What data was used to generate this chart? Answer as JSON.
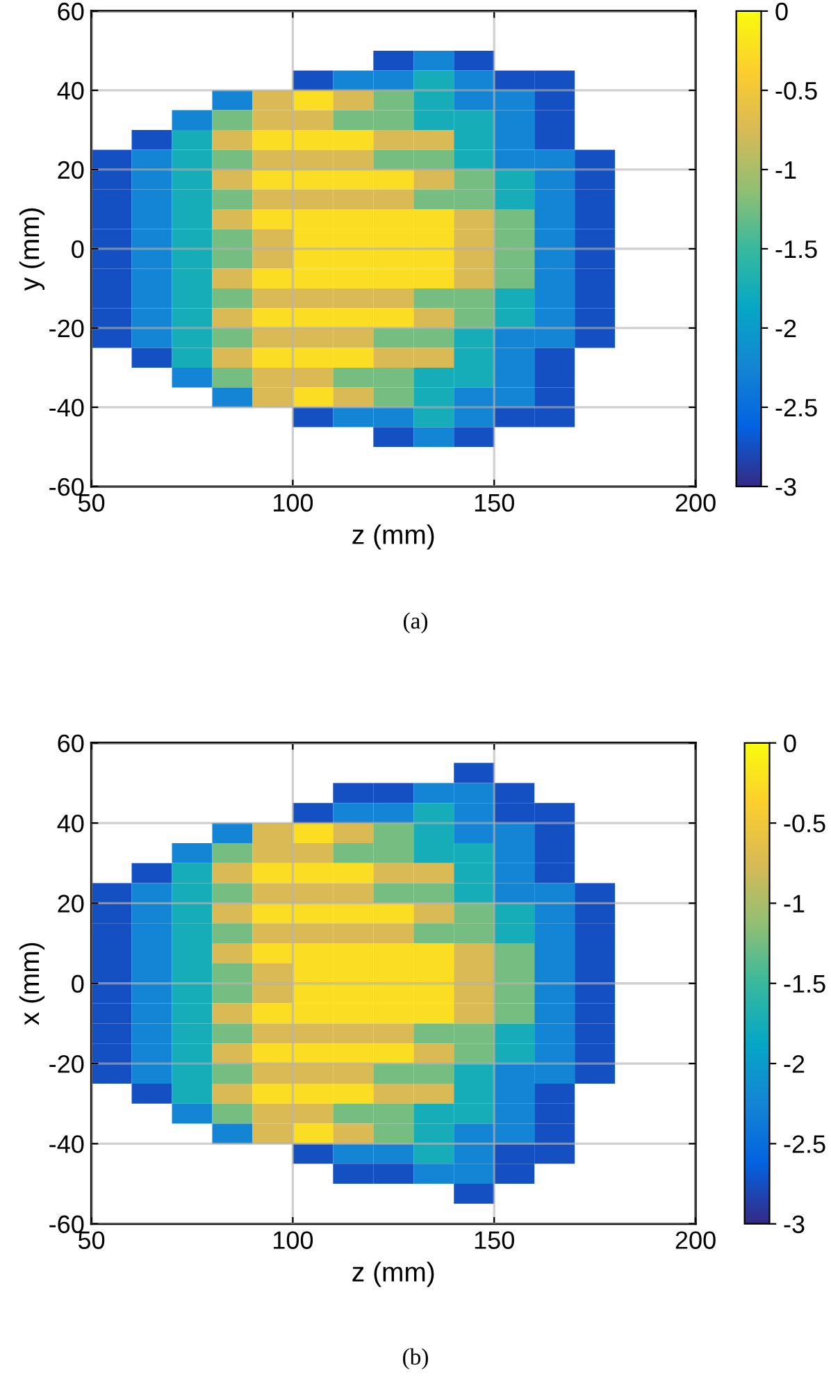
{
  "chart_data": [
    {
      "type": "heatmap",
      "xlabel": "z (mm)",
      "ylabel": "y (mm)",
      "annotations": [
        "(a)"
      ],
      "x": [
        55,
        65,
        75,
        85,
        95,
        105,
        115,
        125,
        135,
        145,
        155,
        165,
        175,
        185,
        195
      ],
      "y": [
        47.5,
        42.5,
        37.5,
        32.5,
        27.5,
        22.5,
        17.5,
        12.5,
        7.5,
        2.5,
        -2.5,
        -7.5,
        -12.5,
        -17.5,
        -22.5,
        -27.5,
        -32.5,
        -37.5,
        -42.5,
        -47.5
      ],
      "cells": [
        [
          null,
          null,
          null,
          null,
          null,
          null,
          null,
          -2.75,
          -2.25,
          -2.75,
          null,
          null,
          null,
          null,
          null
        ],
        [
          null,
          null,
          null,
          null,
          null,
          -2.75,
          -2.25,
          -2.25,
          -1.75,
          -2.25,
          -2.75,
          -2.75,
          null,
          null,
          null
        ],
        [
          null,
          null,
          null,
          -2.25,
          -0.75,
          -0.25,
          -0.75,
          -1.25,
          -1.75,
          -2.25,
          -2.25,
          -2.75,
          null,
          null,
          null
        ],
        [
          null,
          null,
          -2.25,
          -1.25,
          -0.75,
          -0.75,
          -1.25,
          -1.25,
          -1.75,
          -1.75,
          -2.25,
          -2.75,
          null,
          null,
          null
        ],
        [
          null,
          -2.75,
          -1.75,
          -0.75,
          -0.25,
          -0.25,
          -0.25,
          -0.75,
          -0.75,
          -1.75,
          -2.25,
          -2.75,
          null,
          null,
          null
        ],
        [
          -2.75,
          -2.25,
          -1.75,
          -1.25,
          -0.75,
          -0.75,
          -0.75,
          -1.25,
          -1.25,
          -1.75,
          -2.25,
          -2.25,
          -2.75,
          null,
          null
        ],
        [
          -2.75,
          -2.25,
          -1.75,
          -0.75,
          -0.25,
          -0.25,
          -0.25,
          -0.25,
          -0.75,
          -1.25,
          -1.75,
          -2.25,
          -2.75,
          null,
          null
        ],
        [
          -2.75,
          -2.25,
          -1.75,
          -1.25,
          -0.75,
          -0.75,
          -0.75,
          -0.75,
          -1.25,
          -1.25,
          -1.75,
          -2.25,
          -2.75,
          null,
          null
        ],
        [
          -2.75,
          -2.25,
          -1.75,
          -0.75,
          -0.25,
          -0.25,
          -0.25,
          -0.25,
          -0.25,
          -0.75,
          -1.25,
          -2.25,
          -2.75,
          null,
          null
        ],
        [
          -2.75,
          -2.25,
          -1.75,
          -1.25,
          -0.75,
          -0.25,
          -0.25,
          -0.25,
          -0.25,
          -0.75,
          -1.25,
          -2.25,
          -2.75,
          null,
          null
        ],
        [
          -2.75,
          -2.25,
          -1.75,
          -1.25,
          -0.75,
          -0.25,
          -0.25,
          -0.25,
          -0.25,
          -0.75,
          -1.25,
          -2.25,
          -2.75,
          null,
          null
        ],
        [
          -2.75,
          -2.25,
          -1.75,
          -0.75,
          -0.25,
          -0.25,
          -0.25,
          -0.25,
          -0.25,
          -0.75,
          -1.25,
          -2.25,
          -2.75,
          null,
          null
        ],
        [
          -2.75,
          -2.25,
          -1.75,
          -1.25,
          -0.75,
          -0.75,
          -0.75,
          -0.75,
          -1.25,
          -1.25,
          -1.75,
          -2.25,
          -2.75,
          null,
          null
        ],
        [
          -2.75,
          -2.25,
          -1.75,
          -0.75,
          -0.25,
          -0.25,
          -0.25,
          -0.25,
          -0.75,
          -1.25,
          -1.75,
          -2.25,
          -2.75,
          null,
          null
        ],
        [
          -2.75,
          -2.25,
          -1.75,
          -1.25,
          -0.75,
          -0.75,
          -0.75,
          -1.25,
          -1.25,
          -1.75,
          -2.25,
          -2.25,
          -2.75,
          null,
          null
        ],
        [
          null,
          -2.75,
          -1.75,
          -0.75,
          -0.25,
          -0.25,
          -0.25,
          -0.75,
          -0.75,
          -1.75,
          -2.25,
          -2.75,
          null,
          null,
          null
        ],
        [
          null,
          null,
          -2.25,
          -1.25,
          -0.75,
          -0.75,
          -1.25,
          -1.25,
          -1.75,
          -1.75,
          -2.25,
          -2.75,
          null,
          null,
          null
        ],
        [
          null,
          null,
          null,
          -2.25,
          -0.75,
          -0.25,
          -0.75,
          -1.25,
          -1.75,
          -2.25,
          -2.25,
          -2.75,
          null,
          null,
          null
        ],
        [
          null,
          null,
          null,
          null,
          null,
          -2.75,
          -2.25,
          -2.25,
          -1.75,
          -2.25,
          -2.75,
          -2.75,
          null,
          null,
          null
        ],
        [
          null,
          null,
          null,
          null,
          null,
          null,
          null,
          -2.75,
          -2.25,
          -2.75,
          null,
          null,
          null,
          null,
          null
        ]
      ],
      "xlim": [
        50,
        200
      ],
      "xticks": [
        50,
        100,
        150,
        200
      ],
      "ylim": [
        -60,
        60
      ],
      "yticks": [
        -60,
        -40,
        -20,
        0,
        20,
        40,
        60
      ],
      "clim": [
        -3,
        0
      ],
      "cticks": [
        -3,
        -2.5,
        -2,
        -1.5,
        -1,
        -0.5,
        0
      ],
      "grid": true
    },
    {
      "type": "heatmap",
      "xlabel": "z (mm)",
      "ylabel": "x (mm)",
      "annotations": [
        "(b)"
      ],
      "x": [
        55,
        65,
        75,
        85,
        95,
        105,
        115,
        125,
        135,
        145,
        155,
        165,
        175,
        185,
        195
      ],
      "y": [
        52.5,
        47.5,
        42.5,
        37.5,
        32.5,
        27.5,
        22.5,
        17.5,
        12.5,
        7.5,
        2.5,
        -2.5,
        -7.5,
        -12.5,
        -17.5,
        -22.5,
        -27.5,
        -32.5,
        -37.5,
        -42.5,
        -47.5,
        -52.5
      ],
      "cells": [
        [
          null,
          null,
          null,
          null,
          null,
          null,
          null,
          null,
          null,
          -2.75,
          null,
          null,
          null,
          null,
          null
        ],
        [
          null,
          null,
          null,
          null,
          null,
          null,
          -2.75,
          -2.75,
          -2.25,
          -2.25,
          -2.75,
          null,
          null,
          null,
          null
        ],
        [
          null,
          null,
          null,
          null,
          null,
          -2.75,
          -2.25,
          -2.25,
          -1.75,
          -2.25,
          -2.75,
          -2.75,
          null,
          null,
          null
        ],
        [
          null,
          null,
          null,
          -2.25,
          -0.75,
          -0.25,
          -0.75,
          -1.25,
          -1.75,
          -2.25,
          -2.25,
          -2.75,
          null,
          null,
          null
        ],
        [
          null,
          null,
          -2.25,
          -1.25,
          -0.75,
          -0.75,
          -1.25,
          -1.25,
          -1.75,
          -1.75,
          -2.25,
          -2.75,
          null,
          null,
          null
        ],
        [
          null,
          -2.75,
          -1.75,
          -0.75,
          -0.25,
          -0.25,
          -0.25,
          -0.75,
          -0.75,
          -1.75,
          -2.25,
          -2.75,
          null,
          null,
          null
        ],
        [
          -2.75,
          -2.25,
          -1.75,
          -1.25,
          -0.75,
          -0.75,
          -0.75,
          -1.25,
          -1.25,
          -1.75,
          -2.25,
          -2.25,
          -2.75,
          null,
          null
        ],
        [
          -2.75,
          -2.25,
          -1.75,
          -0.75,
          -0.25,
          -0.25,
          -0.25,
          -0.25,
          -0.75,
          -1.25,
          -1.75,
          -2.25,
          -2.75,
          null,
          null
        ],
        [
          -2.75,
          -2.25,
          -1.75,
          -1.25,
          -0.75,
          -0.75,
          -0.75,
          -0.75,
          -1.25,
          -1.25,
          -1.75,
          -2.25,
          -2.75,
          null,
          null
        ],
        [
          -2.75,
          -2.25,
          -1.75,
          -0.75,
          -0.25,
          -0.25,
          -0.25,
          -0.25,
          -0.25,
          -0.75,
          -1.25,
          -2.25,
          -2.75,
          null,
          null
        ],
        [
          -2.75,
          -2.25,
          -1.75,
          -1.25,
          -0.75,
          -0.25,
          -0.25,
          -0.25,
          -0.25,
          -0.75,
          -1.25,
          -2.25,
          -2.75,
          null,
          null
        ],
        [
          -2.75,
          -2.25,
          -1.75,
          -1.25,
          -0.75,
          -0.25,
          -0.25,
          -0.25,
          -0.25,
          -0.75,
          -1.25,
          -2.25,
          -2.75,
          null,
          null
        ],
        [
          -2.75,
          -2.25,
          -1.75,
          -0.75,
          -0.25,
          -0.25,
          -0.25,
          -0.25,
          -0.25,
          -0.75,
          -1.25,
          -2.25,
          -2.75,
          null,
          null
        ],
        [
          -2.75,
          -2.25,
          -1.75,
          -1.25,
          -0.75,
          -0.75,
          -0.75,
          -0.75,
          -1.25,
          -1.25,
          -1.75,
          -2.25,
          -2.75,
          null,
          null
        ],
        [
          -2.75,
          -2.25,
          -1.75,
          -0.75,
          -0.25,
          -0.25,
          -0.25,
          -0.25,
          -0.75,
          -1.25,
          -1.75,
          -2.25,
          -2.75,
          null,
          null
        ],
        [
          -2.75,
          -2.25,
          -1.75,
          -1.25,
          -0.75,
          -0.75,
          -0.75,
          -1.25,
          -1.25,
          -1.75,
          -2.25,
          -2.25,
          -2.75,
          null,
          null
        ],
        [
          null,
          -2.75,
          -1.75,
          -0.75,
          -0.25,
          -0.25,
          -0.25,
          -0.75,
          -0.75,
          -1.75,
          -2.25,
          -2.75,
          null,
          null,
          null
        ],
        [
          null,
          null,
          -2.25,
          -1.25,
          -0.75,
          -0.75,
          -1.25,
          -1.25,
          -1.75,
          -1.75,
          -2.25,
          -2.75,
          null,
          null,
          null
        ],
        [
          null,
          null,
          null,
          -2.25,
          -0.75,
          -0.25,
          -0.75,
          -1.25,
          -1.75,
          -2.25,
          -2.25,
          -2.75,
          null,
          null,
          null
        ],
        [
          null,
          null,
          null,
          null,
          null,
          -2.75,
          -2.25,
          -2.25,
          -1.75,
          -2.25,
          -2.75,
          -2.75,
          null,
          null,
          null
        ],
        [
          null,
          null,
          null,
          null,
          null,
          null,
          -2.75,
          -2.75,
          -2.25,
          -2.25,
          -2.75,
          null,
          null,
          null,
          null
        ],
        [
          null,
          null,
          null,
          null,
          null,
          null,
          null,
          null,
          null,
          -2.75,
          null,
          null,
          null,
          null,
          null
        ]
      ],
      "xlim": [
        50,
        200
      ],
      "xticks": [
        50,
        100,
        150,
        200
      ],
      "ylim": [
        -60,
        60
      ],
      "yticks": [
        -60,
        -40,
        -20,
        0,
        20,
        40,
        60
      ],
      "clim": [
        -3,
        0
      ],
      "cticks": [
        -3,
        -2.5,
        -2,
        -1.5,
        -1,
        -0.5,
        0
      ],
      "grid": true
    }
  ]
}
